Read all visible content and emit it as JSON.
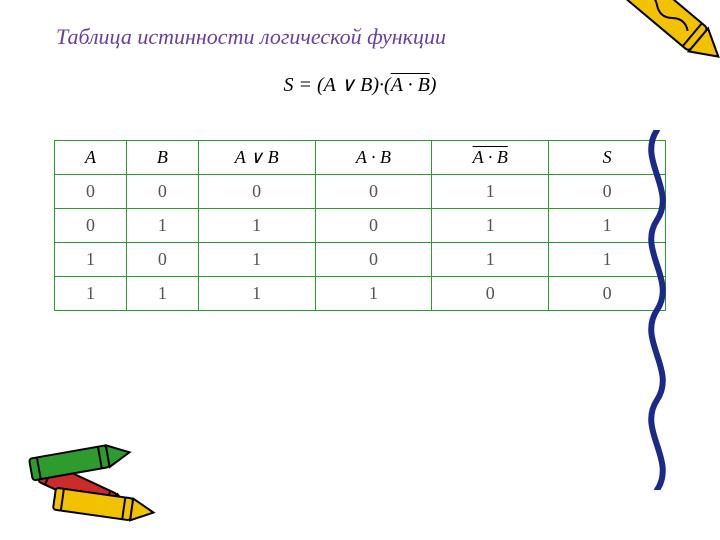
{
  "title": {
    "text": "Таблица истинности логической функции",
    "color": "#6b3fa0"
  },
  "formula": {
    "lhs": "S",
    "eq": " = ",
    "p1": "(A ∨ B)",
    "dot": "·",
    "p2_open": "(",
    "p2_bar": "A · B",
    "p2_close": ")"
  },
  "table": {
    "border_color": "#2e9b2e",
    "columns": [
      {
        "label": "A",
        "type": "plain"
      },
      {
        "label": "B",
        "type": "plain"
      },
      {
        "label": "A ∨ B",
        "type": "plain"
      },
      {
        "label": "A · B",
        "type": "plain"
      },
      {
        "label": "A · B",
        "type": "overline"
      },
      {
        "label": "S",
        "type": "plain"
      }
    ],
    "rows": [
      [
        "0",
        "0",
        "0",
        "0",
        "1",
        "0"
      ],
      [
        "0",
        "1",
        "1",
        "0",
        "1",
        "1"
      ],
      [
        "1",
        "0",
        "1",
        "0",
        "1",
        "1"
      ],
      [
        "1",
        "1",
        "1",
        "1",
        "0",
        "0"
      ]
    ]
  },
  "decor": {
    "crayon_yellow": "#f2c200",
    "crayon_green": "#2e9b2e",
    "crayon_red": "#cc2b2b",
    "squiggle_color": "#1a2a8a"
  }
}
